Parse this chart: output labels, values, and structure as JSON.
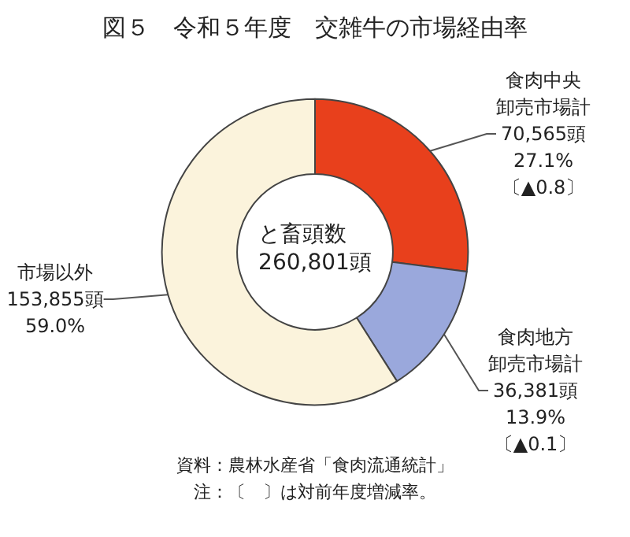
{
  "chart_data": {
    "type": "donut",
    "title": "図５　令和５年度　交雑牛の市場経由率",
    "categories": [
      "食肉中央卸売市場計",
      "食肉地方卸売市場計",
      "市場以外"
    ],
    "values": [
      70565,
      36381,
      153855
    ],
    "colors": [
      "#e8401c",
      "#9aa8dc",
      "#fbf3dc"
    ],
    "value_labels": [
      "70,565頭\n27.1%\n〔▲0.8〕",
      "36,381頭\n13.9%\n〔▲0.1〕",
      "153,855頭\n59.0%"
    ],
    "annotations": [
      "と畜頭数\n260,801頭",
      "資料：農林水産省「食肉流通統計」",
      "注：〔　〕は対前年度増減率。"
    ],
    "legend": false
  }
}
